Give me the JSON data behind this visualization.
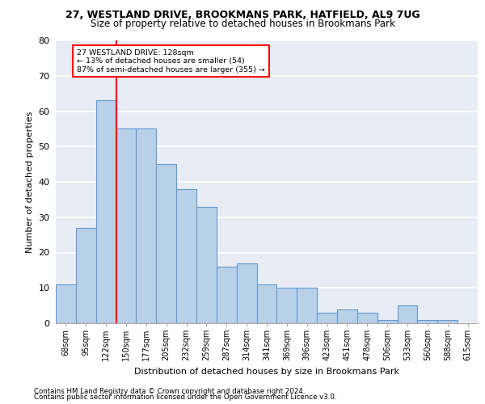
{
  "title1": "27, WESTLAND DRIVE, BROOKMANS PARK, HATFIELD, AL9 7UG",
  "title2": "Size of property relative to detached houses in Brookmans Park",
  "xlabel": "Distribution of detached houses by size in Brookmans Park",
  "ylabel": "Number of detached properties",
  "bins": [
    "68sqm",
    "95sqm",
    "122sqm",
    "150sqm",
    "177sqm",
    "205sqm",
    "232sqm",
    "259sqm",
    "287sqm",
    "314sqm",
    "341sqm",
    "369sqm",
    "396sqm",
    "423sqm",
    "451sqm",
    "478sqm",
    "506sqm",
    "533sqm",
    "560sqm",
    "588sqm",
    "615sqm"
  ],
  "values": [
    11,
    27,
    63,
    55,
    55,
    45,
    38,
    33,
    16,
    17,
    11,
    10,
    10,
    3,
    4,
    3,
    1,
    5,
    1,
    1,
    0
  ],
  "bar_color": "#b8d0e8",
  "bar_edge_color": "#6699cc",
  "vline_x_index": 2.5,
  "annotation_text1": "27 WESTLAND DRIVE: 128sqm",
  "annotation_text2": "← 13% of detached houses are smaller (54)",
  "annotation_text3": "87% of semi-detached houses are larger (355) →",
  "annotation_box_color": "white",
  "annotation_border_color": "red",
  "vline_color": "red",
  "ylim": [
    0,
    80
  ],
  "yticks": [
    0,
    10,
    20,
    30,
    40,
    50,
    60,
    70,
    80
  ],
  "bg_color": "#e8edf5",
  "grid_color": "white",
  "footnote1": "Contains HM Land Registry data © Crown copyright and database right 2024.",
  "footnote2": "Contains public sector information licensed under the Open Government Licence v3.0."
}
